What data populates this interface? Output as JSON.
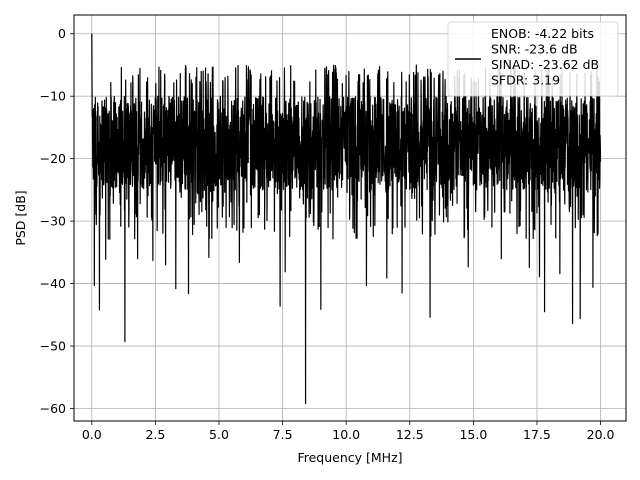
{
  "chart_data": {
    "type": "line",
    "title": "",
    "xlabel": "Frequency [MHz]",
    "ylabel": "PSD [dB]",
    "xlim": [
      -0.7,
      21.0
    ],
    "ylim": [
      -62.0,
      3.0
    ],
    "xticks": [
      0.0,
      2.5,
      5.0,
      7.5,
      10.0,
      12.5,
      15.0,
      17.5,
      20.0
    ],
    "xtick_labels": [
      "0.0",
      "2.5",
      "5.0",
      "7.5",
      "10.0",
      "12.5",
      "15.0",
      "17.5",
      "20.0"
    ],
    "yticks": [
      0,
      -10,
      -20,
      -30,
      -40,
      -50,
      -60
    ],
    "ytick_labels": [
      "0",
      "−10",
      "−20",
      "−30",
      "−40",
      "−50",
      "−60"
    ],
    "grid": true,
    "legend_position": "top-right",
    "series": [
      {
        "name": "ENOB: -4.22 bits\nSNR: -23.6 dB\nSINAD: -23.62 dB\nSFDR: 3.19",
        "color": "#000000",
        "x_range": [
          0.0,
          20.0
        ],
        "typical_band": [
          -25,
          -10
        ],
        "upper_envelope": -5,
        "spikes": [
          {
            "x": 0.0,
            "y": 0.0
          },
          {
            "x": 0.1,
            "y": -40.3
          },
          {
            "x": 0.3,
            "y": -44.2
          },
          {
            "x": 0.55,
            "y": -36.1
          },
          {
            "x": 1.3,
            "y": -49.3
          },
          {
            "x": 1.8,
            "y": -36.0
          },
          {
            "x": 2.4,
            "y": -36.3
          },
          {
            "x": 2.9,
            "y": -37.0
          },
          {
            "x": 3.3,
            "y": -40.8
          },
          {
            "x": 3.8,
            "y": -41.6
          },
          {
            "x": 4.6,
            "y": -35.8
          },
          {
            "x": 5.8,
            "y": -36.6
          },
          {
            "x": 7.4,
            "y": -43.6
          },
          {
            "x": 7.6,
            "y": -38.1
          },
          {
            "x": 8.4,
            "y": -59.2
          },
          {
            "x": 9.0,
            "y": -44.1
          },
          {
            "x": 10.8,
            "y": -40.3
          },
          {
            "x": 11.6,
            "y": -39.1
          },
          {
            "x": 12.2,
            "y": -41.5
          },
          {
            "x": 13.3,
            "y": -45.4
          },
          {
            "x": 14.8,
            "y": -37.3
          },
          {
            "x": 16.1,
            "y": -36.0
          },
          {
            "x": 17.2,
            "y": -37.4
          },
          {
            "x": 17.6,
            "y": -38.9
          },
          {
            "x": 17.8,
            "y": -44.5
          },
          {
            "x": 18.4,
            "y": -38.4
          },
          {
            "x": 18.9,
            "y": -46.4
          },
          {
            "x": 19.2,
            "y": -45.6
          },
          {
            "x": 19.7,
            "y": -40.6
          }
        ]
      }
    ]
  }
}
